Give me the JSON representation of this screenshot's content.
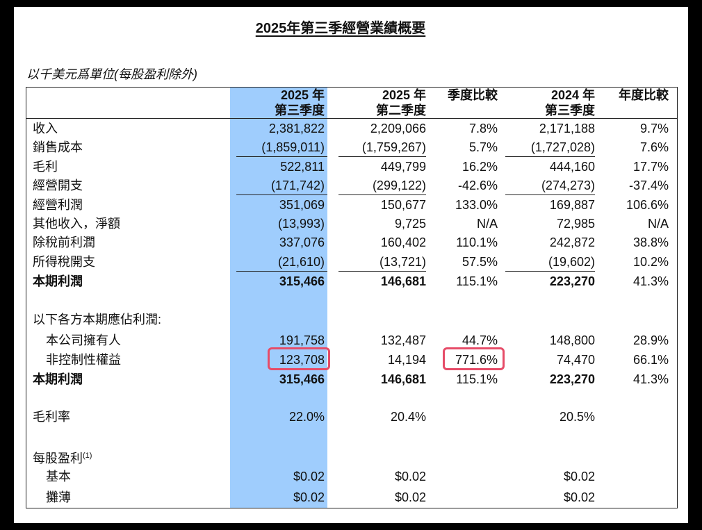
{
  "header": {
    "title": "2025年第三季經營業績概要",
    "unit_note": "以千美元爲單位(每股盈利除外)"
  },
  "table": {
    "columns": [
      [
        "2025 年",
        "第三季度"
      ],
      [
        "2025 年",
        "第二季度"
      ],
      [
        "季度比較"
      ],
      [
        "2024 年",
        "第三季度"
      ],
      [
        "年度比較"
      ]
    ],
    "rows": [
      {
        "label": "收入",
        "values": [
          "2,381,822",
          "2,209,066",
          "7.8%",
          "2,171,188",
          "9.7%"
        ]
      },
      {
        "label": "銷售成本",
        "values": [
          "(1,859,011)",
          "(1,759,267)",
          "5.7%",
          "(1,727,028)",
          "7.6%"
        ]
      },
      {
        "label": "毛利",
        "values": [
          "522,811",
          "449,799",
          "16.2%",
          "444,160",
          "17.7%"
        ]
      },
      {
        "label": "經營開支",
        "values": [
          "(171,742)",
          "(299,122)",
          "-42.6%",
          "(274,273)",
          "-37.4%"
        ]
      },
      {
        "label": "經營利潤",
        "values": [
          "351,069",
          "150,677",
          "133.0%",
          "169,887",
          "106.6%"
        ]
      },
      {
        "label": "其他收入，淨額",
        "values": [
          "(13,993)",
          "9,725",
          "N/A",
          "72,985",
          "N/A"
        ]
      },
      {
        "label": "除稅前利潤",
        "values": [
          "337,076",
          "160,402",
          "110.1%",
          "242,872",
          "38.8%"
        ]
      },
      {
        "label": "所得稅開支",
        "values": [
          "(21,610)",
          "(13,721)",
          "57.5%",
          "(19,602)",
          "10.2%"
        ]
      },
      {
        "label": "本期利潤",
        "values": [
          "315,466",
          "146,681",
          "115.1%",
          "223,270",
          "41.3%"
        ]
      },
      {
        "label": "以下各方本期應佔利潤:"
      },
      {
        "label": "本公司擁有人",
        "values": [
          "191,758",
          "132,487",
          "44.7%",
          "148,800",
          "28.9%"
        ]
      },
      {
        "label": "非控制性權益",
        "values": [
          "123,708",
          "14,194",
          "771.6%",
          "74,470",
          "66.1%"
        ]
      },
      {
        "label": "本期利潤",
        "values": [
          "315,466",
          "146,681",
          "115.1%",
          "223,270",
          "41.3%"
        ]
      },
      {
        "label": "毛利率",
        "values": [
          "22.0%",
          "20.4%",
          null,
          "20.5%",
          null
        ]
      },
      {
        "label": "每股盈利",
        "label_note": "(1)"
      },
      {
        "label": "基本",
        "values": [
          "$0.02",
          "$0.02",
          null,
          "$0.02",
          null
        ]
      },
      {
        "label": "攤薄",
        "values": [
          "$0.02",
          "$0.02",
          null,
          "$0.02",
          null
        ]
      }
    ]
  }
}
